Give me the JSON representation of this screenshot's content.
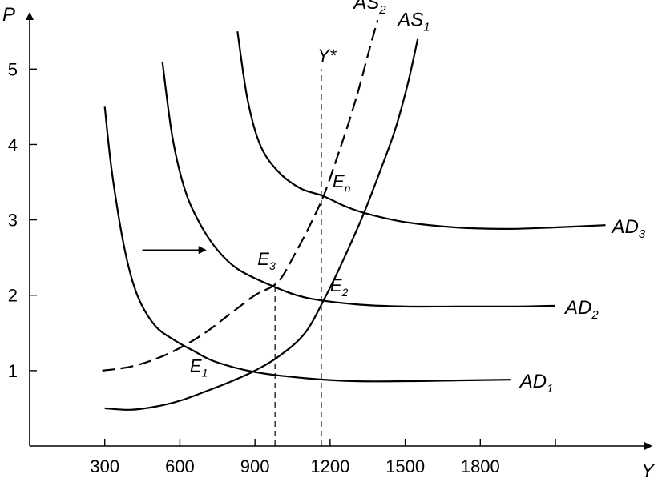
{
  "chart_data": {
    "type": "line",
    "xlabel": "Y",
    "ylabel": "P",
    "xlim": [
      0,
      2500
    ],
    "ylim": [
      0,
      5.8
    ],
    "x_ticks": [
      300,
      600,
      900,
      1200,
      1500,
      1800,
      2100
    ],
    "x_tick_labels": [
      "300",
      "600",
      "900",
      "1200",
      "1500",
      "1800",
      ""
    ],
    "y_ticks": [
      1,
      2,
      3,
      4,
      5
    ],
    "y_tick_labels": [
      "1",
      "2",
      "3",
      "4",
      "5"
    ],
    "grid": false,
    "series": [
      {
        "name": "AD1",
        "label_main": "AD",
        "label_sub": "1",
        "style": "solid",
        "x": [
          300,
          330,
          380,
          430,
          500,
          580,
          650,
          740,
          900,
          1100,
          1300,
          1500,
          1700,
          1920
        ],
        "y": [
          4.5,
          3.6,
          2.6,
          2.0,
          1.6,
          1.4,
          1.27,
          1.12,
          0.98,
          0.9,
          0.86,
          0.86,
          0.87,
          0.88
        ]
      },
      {
        "name": "AD2",
        "label_main": "AD",
        "label_sub": "2",
        "style": "solid",
        "x": [
          530,
          570,
          620,
          680,
          750,
          830,
          950,
          1100,
          1300,
          1500,
          1700,
          1950,
          2100
        ],
        "y": [
          5.1,
          4.1,
          3.4,
          2.95,
          2.6,
          2.35,
          2.15,
          1.97,
          1.88,
          1.85,
          1.85,
          1.85,
          1.86
        ]
      },
      {
        "name": "AD3",
        "label_main": "AD",
        "label_sub": "3",
        "style": "solid",
        "x": [
          830,
          870,
          920,
          990,
          1080,
          1170,
          1260,
          1350,
          1500,
          1700,
          1900,
          2100,
          2300
        ],
        "y": [
          5.5,
          4.6,
          4.0,
          3.65,
          3.42,
          3.32,
          3.18,
          3.08,
          2.97,
          2.9,
          2.88,
          2.9,
          2.93
        ]
      },
      {
        "name": "AS1",
        "label_main": "AS",
        "label_sub": "1",
        "style": "solid",
        "x": [
          300,
          400,
          500,
          600,
          700,
          800,
          900,
          1000,
          1100,
          1180,
          1250,
          1330,
          1400,
          1460,
          1510,
          1550
        ],
        "y": [
          0.5,
          0.48,
          0.52,
          0.6,
          0.72,
          0.85,
          1.0,
          1.2,
          1.5,
          1.97,
          2.45,
          3.05,
          3.65,
          4.2,
          4.8,
          5.4
        ]
      },
      {
        "name": "AS2",
        "label_main": "AS",
        "label_sub": "2",
        "style": "dashed",
        "x": [
          290,
          400,
          500,
          600,
          700,
          800,
          900,
          990,
          1060,
          1130,
          1180,
          1230,
          1280,
          1320,
          1360,
          1390
        ],
        "y": [
          1.0,
          1.05,
          1.15,
          1.3,
          1.5,
          1.75,
          2.0,
          2.17,
          2.55,
          3.0,
          3.37,
          3.85,
          4.35,
          4.8,
          5.3,
          5.65
        ]
      }
    ],
    "vertical_lines": [
      {
        "name": "Y-star",
        "x": 1165,
        "y_from": 0,
        "y_to": 5.0,
        "style": "dashed"
      },
      {
        "name": "E3-drop",
        "x": 980,
        "y_from": 0,
        "y_to": 2.17,
        "style": "dashed"
      }
    ],
    "annotations": [
      {
        "main": "Y*",
        "sub": "",
        "x": 1150,
        "y": 5.1,
        "italic": true
      },
      {
        "main": "E",
        "sub": "1",
        "x": 640,
        "y": 0.98,
        "italic": true
      },
      {
        "main": "E",
        "sub": "2",
        "x": 1200,
        "y": 2.05,
        "italic": true
      },
      {
        "main": "E",
        "sub": "3",
        "x": 910,
        "y": 2.4,
        "italic": true
      },
      {
        "main": "E",
        "sub": "n",
        "x": 1210,
        "y": 3.43,
        "italic": true
      }
    ],
    "arrows": [
      {
        "name": "shift-arrow",
        "x_from": 450,
        "x_to": 700,
        "y": 2.6
      }
    ]
  }
}
